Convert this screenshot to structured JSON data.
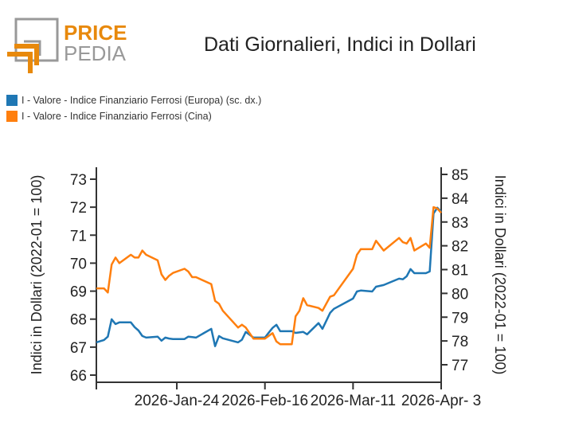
{
  "logo": {
    "word1": "PRICE",
    "word2": "PEDIA"
  },
  "chart_data": {
    "type": "line",
    "title": "Dati Giornalieri, Indici in Dollari",
    "ylabel": "Indici in Dollari (2022-01 = 100)",
    "ylabel_right": "Indici in Dollari (2022-01 = 100)",
    "xlim": [
      "2026-01-03",
      "2026-04-03"
    ],
    "ylim": [
      65.7,
      73.4
    ],
    "ylim_right": [
      76.6,
      85.4
    ],
    "yticks": [
      66,
      67,
      68,
      69,
      70,
      71,
      72,
      73
    ],
    "yticks_right": [
      77,
      78,
      79,
      80,
      81,
      82,
      83,
      84,
      85
    ],
    "xticks": [
      {
        "date": "2026-01-03",
        "label": ""
      },
      {
        "date": "2026-01-24",
        "label": "2026-Jan-24"
      },
      {
        "date": "2026-02-16",
        "label": "2026-Feb-16"
      },
      {
        "date": "2026-03-11",
        "label": "2026-Mar-11"
      },
      {
        "date": "2026-04-03",
        "label": "2026-Apr- 3"
      }
    ],
    "grid": false,
    "legend_placement": "top-left",
    "x": [
      "2026-01-03",
      "2026-01-05",
      "2026-01-06",
      "2026-01-07",
      "2026-01-08",
      "2026-01-09",
      "2026-01-12",
      "2026-01-13",
      "2026-01-14",
      "2026-01-15",
      "2026-01-16",
      "2026-01-19",
      "2026-01-20",
      "2026-01-21",
      "2026-01-22",
      "2026-01-23",
      "2026-01-26",
      "2026-01-27",
      "2026-01-28",
      "2026-01-29",
      "2026-02-02",
      "2026-02-03",
      "2026-02-04",
      "2026-02-05",
      "2026-02-09",
      "2026-02-10",
      "2026-02-11",
      "2026-02-13",
      "2026-02-16",
      "2026-02-17",
      "2026-02-18",
      "2026-02-19",
      "2026-02-20",
      "2026-02-23",
      "2026-02-24",
      "2026-02-25",
      "2026-02-26",
      "2026-02-27",
      "2026-03-02",
      "2026-03-03",
      "2026-03-05",
      "2026-03-06",
      "2026-03-11",
      "2026-03-12",
      "2026-03-13",
      "2026-03-16",
      "2026-03-17",
      "2026-03-19",
      "2026-03-23",
      "2026-03-24",
      "2026-03-25",
      "2026-03-26",
      "2026-03-27",
      "2026-03-30",
      "2026-03-31",
      "2026-04-01",
      "2026-04-02",
      "2026-04-03"
    ],
    "series": [
      {
        "name": "I - Valore - Indice Finanziario Ferrosi (Europa) (sc. dx.)",
        "axis": "right",
        "color": "#1f77b4",
        "values": [
          77.94,
          78.04,
          78.18,
          78.91,
          78.71,
          78.78,
          78.78,
          78.58,
          78.44,
          78.21,
          78.14,
          78.18,
          78.01,
          78.14,
          78.1,
          78.08,
          78.08,
          78.18,
          78.16,
          78.14,
          78.51,
          77.78,
          78.21,
          78.11,
          77.94,
          78.05,
          78.38,
          78.14,
          78.14,
          78.35,
          78.55,
          78.68,
          78.41,
          78.41,
          78.34,
          78.36,
          78.38,
          78.28,
          78.75,
          78.51,
          79.18,
          79.35,
          79.78,
          80.08,
          80.12,
          80.08,
          80.28,
          80.35,
          80.62,
          80.59,
          80.72,
          81.02,
          80.85,
          80.85,
          80.92,
          83.36,
          83.6,
          83.43
        ]
      },
      {
        "name": "I - Valore - Indice Finanziario Ferrosi (Cina)",
        "axis": "left",
        "color": "#ff7f0e",
        "values": [
          69.1,
          69.1,
          68.95,
          69.95,
          70.2,
          70.0,
          70.3,
          70.2,
          70.2,
          70.45,
          70.3,
          70.1,
          69.6,
          69.4,
          69.55,
          69.65,
          69.8,
          69.7,
          69.5,
          69.5,
          69.25,
          68.65,
          68.55,
          68.3,
          67.7,
          67.8,
          67.7,
          67.3,
          67.3,
          67.4,
          67.5,
          67.2,
          67.1,
          67.1,
          68.1,
          68.3,
          68.75,
          68.5,
          68.4,
          68.3,
          68.8,
          68.85,
          69.8,
          70.3,
          70.5,
          70.5,
          70.8,
          70.45,
          70.9,
          70.75,
          70.7,
          70.9,
          70.45,
          70.7,
          70.55,
          72.0,
          71.95,
          71.8
        ]
      }
    ]
  }
}
